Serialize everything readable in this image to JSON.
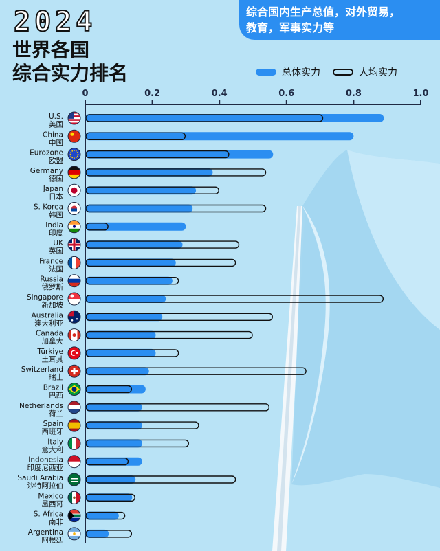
{
  "heading": {
    "year": "2024",
    "title_line1": "世界各国",
    "title_line2": "综合实力排名"
  },
  "note": {
    "line1": "综合国内生产总值，对外贸易，",
    "line2": "教育，军事实力等"
  },
  "colors": {
    "background": "#b9e3f6",
    "total_bar": "#2b8ef1",
    "per_capita_outline": "#111111",
    "note_box": "#2b8ef1"
  },
  "chart_data": {
    "type": "bar",
    "orientation": "horizontal",
    "xlim": [
      0,
      1.0
    ],
    "x_ticks": [
      "0",
      "0.2",
      "0.4",
      "0.6",
      "0.8",
      "1.0"
    ],
    "legend_placement": "top-right",
    "series": [
      {
        "key": "total",
        "name": "总体实力",
        "color": "#2b8ef1",
        "style": "filled"
      },
      {
        "key": "per_capita",
        "name": "人均实力",
        "color": "#111111",
        "style": "outline"
      }
    ],
    "countries": [
      {
        "en": "U.S.",
        "zh": "美国",
        "flag": "us-flag-icon",
        "total": 0.89,
        "per_capita": 0.71
      },
      {
        "en": "China",
        "zh": "中国",
        "flag": "china-flag-icon",
        "total": 0.8,
        "per_capita": 0.3
      },
      {
        "en": "Eurozone",
        "zh": "欧盟",
        "flag": "eu-flag-icon",
        "total": 0.56,
        "per_capita": 0.43
      },
      {
        "en": "Germany",
        "zh": "德国",
        "flag": "germany-flag-icon",
        "total": 0.38,
        "per_capita": 0.54
      },
      {
        "en": "Japan",
        "zh": "日本",
        "flag": "japan-flag-icon",
        "total": 0.33,
        "per_capita": 0.4
      },
      {
        "en": "S. Korea",
        "zh": "韩国",
        "flag": "south-korea-flag-icon",
        "total": 0.32,
        "per_capita": 0.54
      },
      {
        "en": "India",
        "zh": "印度",
        "flag": "india-flag-icon",
        "total": 0.3,
        "per_capita": 0.07
      },
      {
        "en": "UK",
        "zh": "英国",
        "flag": "uk-flag-icon",
        "total": 0.29,
        "per_capita": 0.46
      },
      {
        "en": "France",
        "zh": "法国",
        "flag": "france-flag-icon",
        "total": 0.27,
        "per_capita": 0.45
      },
      {
        "en": "Russia",
        "zh": "俄罗斯",
        "flag": "russia-flag-icon",
        "total": 0.26,
        "per_capita": 0.28
      },
      {
        "en": "Singapore",
        "zh": "新加坡",
        "flag": "singapore-flag-icon",
        "total": 0.24,
        "per_capita": 0.89
      },
      {
        "en": "Australia",
        "zh": "澳大利亚",
        "flag": "australia-flag-icon",
        "total": 0.23,
        "per_capita": 0.56
      },
      {
        "en": "Canada",
        "zh": "加拿大",
        "flag": "canada-flag-icon",
        "total": 0.21,
        "per_capita": 0.5
      },
      {
        "en": "Türkiye",
        "zh": "土耳其",
        "flag": "turkiye-flag-icon",
        "total": 0.21,
        "per_capita": 0.28
      },
      {
        "en": "Switzerland",
        "zh": "瑞士",
        "flag": "switzerland-flag-icon",
        "total": 0.19,
        "per_capita": 0.66
      },
      {
        "en": "Brazil",
        "zh": "巴西",
        "flag": "brazil-flag-icon",
        "total": 0.18,
        "per_capita": 0.14
      },
      {
        "en": "Netherlands",
        "zh": "荷兰",
        "flag": "netherlands-flag-icon",
        "total": 0.17,
        "per_capita": 0.55
      },
      {
        "en": "Spain",
        "zh": "西班牙",
        "flag": "spain-flag-icon",
        "total": 0.17,
        "per_capita": 0.34
      },
      {
        "en": "Italy",
        "zh": "意大利",
        "flag": "italy-flag-icon",
        "total": 0.17,
        "per_capita": 0.31
      },
      {
        "en": "Indonesia",
        "zh": "印度尼西亚",
        "flag": "indonesia-flag-icon",
        "total": 0.17,
        "per_capita": 0.13
      },
      {
        "en": "Saudi Arabia",
        "zh": "沙特阿拉伯",
        "flag": "saudi-arabia-flag-icon",
        "total": 0.15,
        "per_capita": 0.45
      },
      {
        "en": "Mexico",
        "zh": "墨西哥",
        "flag": "mexico-flag-icon",
        "total": 0.14,
        "per_capita": 0.15
      },
      {
        "en": "S. Africa",
        "zh": "南非",
        "flag": "south-africa-flag-icon",
        "total": 0.1,
        "per_capita": 0.12
      },
      {
        "en": "Argentina",
        "zh": "阿根廷",
        "flag": "argentina-flag-icon",
        "total": 0.07,
        "per_capita": 0.14
      }
    ]
  }
}
